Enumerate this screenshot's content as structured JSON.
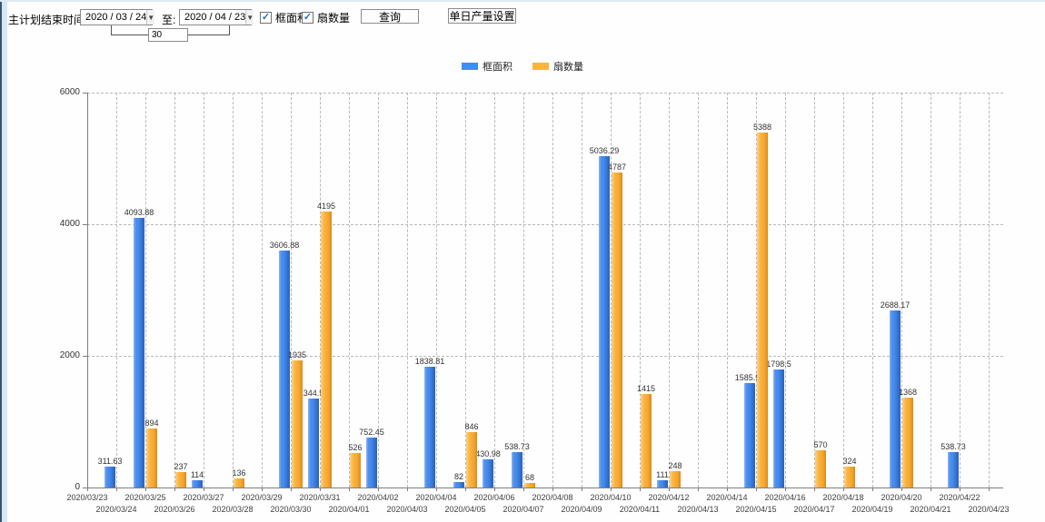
{
  "toolbar": {
    "label_period": "主计划结束时间:",
    "start_date": "2020 / 03 / 24",
    "to_label": "至:",
    "end_date": "2020 / 04 / 23",
    "days_value": "30",
    "checkbox_frame_area": {
      "label": "框面积",
      "checked": true
    },
    "checkbox_fan_count": {
      "label": "扇数量",
      "checked": true
    },
    "check_glyph": "✓",
    "dropdown_glyph": "▼",
    "query_button": "查询",
    "daily_output_button": "单日产量设置"
  },
  "legend": {
    "items": [
      {
        "label": "框面积",
        "color": "#418cf0"
      },
      {
        "label": "扇数量",
        "color": "#fcb441"
      }
    ]
  },
  "chart_data": {
    "type": "bar",
    "title": "",
    "xlabel": "",
    "ylabel": "",
    "ylim": [
      0,
      6000
    ],
    "yticks": [
      0,
      2000,
      4000,
      6000
    ],
    "grid": true,
    "legend_position": "top",
    "categories": [
      "2020/03/23",
      "2020/03/24",
      "2020/03/25",
      "2020/03/26",
      "2020/03/27",
      "2020/03/28",
      "2020/03/29",
      "2020/03/30",
      "2020/03/31",
      "2020/04/01",
      "2020/04/02",
      "2020/04/03",
      "2020/04/04",
      "2020/04/05",
      "2020/04/06",
      "2020/04/07",
      "2020/04/08",
      "2020/04/09",
      "2020/04/10",
      "2020/04/11",
      "2020/04/12",
      "2020/04/13",
      "2020/04/14",
      "2020/04/15",
      "2020/04/16",
      "2020/04/17",
      "2020/04/18",
      "2020/04/19",
      "2020/04/20",
      "2020/04/21",
      "2020/04/22",
      "2020/04/23"
    ],
    "series": [
      {
        "name": "框面积",
        "color": "#418cf0",
        "values": [
          null,
          311.63,
          4093.88,
          null,
          114,
          null,
          null,
          3606.88,
          1344.95,
          null,
          752.45,
          null,
          1838.81,
          82,
          430.98,
          538.73,
          null,
          null,
          5036.29,
          null,
          111,
          null,
          null,
          1585.96,
          1798.5,
          null,
          null,
          null,
          2688.17,
          null,
          538.73,
          null
        ]
      },
      {
        "name": "扇数量",
        "color": "#fcb441",
        "values": [
          null,
          null,
          894,
          237,
          null,
          136,
          null,
          1935,
          4195,
          526,
          null,
          null,
          null,
          846,
          null,
          68,
          null,
          null,
          4787,
          1415,
          248,
          null,
          null,
          5388,
          null,
          570,
          324,
          null,
          1368,
          null,
          null,
          null
        ]
      }
    ]
  }
}
